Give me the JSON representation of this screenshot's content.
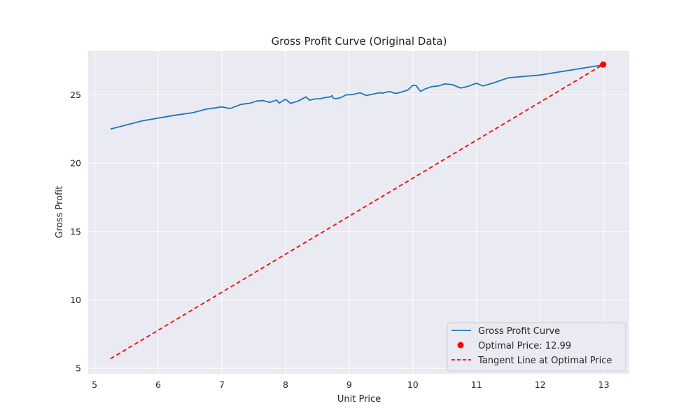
{
  "chart_data": {
    "type": "line",
    "title": "Gross Profit Curve (Original Data)",
    "xlabel": "Unit Price",
    "ylabel": "Gross Profit",
    "xlim": [
      4.9,
      13.4
    ],
    "ylim": [
      4.6,
      28.2
    ],
    "xticks": [
      5,
      6,
      7,
      8,
      9,
      10,
      11,
      12,
      13
    ],
    "yticks": [
      5,
      10,
      15,
      20,
      25
    ],
    "grid": true,
    "legend_position": "lower-right",
    "series": [
      {
        "name": "Gross Profit Curve",
        "kind": "line",
        "color": "#1f77b4",
        "x": [
          5.25,
          5.75,
          6.25,
          6.55,
          6.75,
          6.9,
          7.0,
          7.13,
          7.3,
          7.45,
          7.55,
          7.65,
          7.75,
          7.86,
          7.9,
          8.0,
          8.08,
          8.2,
          8.32,
          8.38,
          8.45,
          8.55,
          8.62,
          8.7,
          8.73,
          8.75,
          8.8,
          8.87,
          8.95,
          9.0,
          9.05,
          9.17,
          9.27,
          9.37,
          9.47,
          9.53,
          9.6,
          9.65,
          9.72,
          9.78,
          9.85,
          9.92,
          10.0,
          10.05,
          10.12,
          10.2,
          10.3,
          10.4,
          10.5,
          10.62,
          10.75,
          10.85,
          11.0,
          11.1,
          11.25,
          11.5,
          12.0,
          13.0
        ],
        "y": [
          22.5,
          23.1,
          23.5,
          23.7,
          23.95,
          24.05,
          24.12,
          24.0,
          24.3,
          24.4,
          24.55,
          24.58,
          24.45,
          24.62,
          24.4,
          24.68,
          24.38,
          24.55,
          24.85,
          24.6,
          24.7,
          24.72,
          24.8,
          24.85,
          24.95,
          24.75,
          24.72,
          24.8,
          25.0,
          25.0,
          25.02,
          25.15,
          24.95,
          25.05,
          25.15,
          25.12,
          25.22,
          25.23,
          25.1,
          25.15,
          25.25,
          25.35,
          25.7,
          25.68,
          25.25,
          25.45,
          25.6,
          25.65,
          25.8,
          25.75,
          25.5,
          25.6,
          25.85,
          25.65,
          25.85,
          26.25,
          26.45,
          27.2
        ]
      },
      {
        "name": "Optimal Price: 12.99",
        "kind": "point",
        "color": "#ff0000",
        "x": [
          12.99
        ],
        "y": [
          27.22
        ]
      },
      {
        "name": "Tangent Line at Optimal Price",
        "kind": "dashed-line",
        "color": "#ff0000",
        "x": [
          5.25,
          12.99
        ],
        "y": [
          5.7,
          27.22
        ]
      }
    ]
  }
}
